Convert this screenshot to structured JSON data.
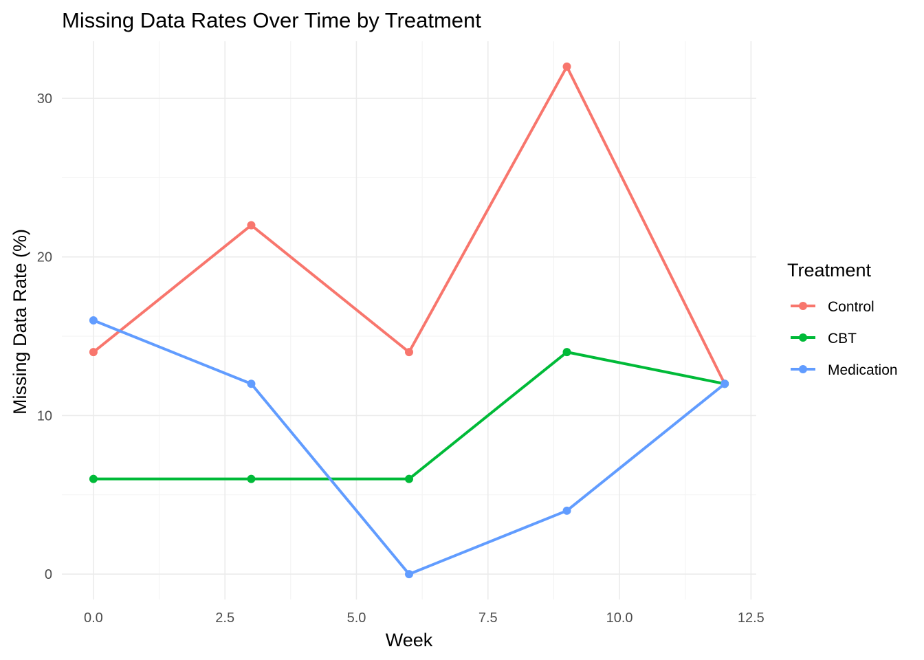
{
  "chart_data": {
    "type": "line",
    "title": "Missing Data Rates Over Time by Treatment",
    "xlabel": "Week",
    "ylabel": "Missing Data Rate (%)",
    "x": [
      0,
      3,
      6,
      9,
      12
    ],
    "xlim": [
      -0.6,
      12.6
    ],
    "ylim": [
      -1.6,
      33.6
    ],
    "x_ticks": [
      0,
      2.5,
      5,
      7.5,
      10,
      12.5
    ],
    "x_tick_labels": [
      "0.0",
      "2.5",
      "5.0",
      "7.5",
      "10.0",
      "12.5"
    ],
    "y_ticks": [
      0,
      10,
      20,
      30
    ],
    "y_tick_labels": [
      "0",
      "10",
      "20",
      "30"
    ],
    "grid": true,
    "legend": {
      "title": "Treatment",
      "placement": "right"
    },
    "series": [
      {
        "name": "Control",
        "color": "#F8766D",
        "values": [
          14,
          22,
          14,
          32,
          12
        ]
      },
      {
        "name": "CBT",
        "color": "#00BA38",
        "values": [
          6,
          6,
          6,
          14,
          12
        ]
      },
      {
        "name": "Medication",
        "color": "#619CFF",
        "values": [
          16,
          12,
          0,
          4,
          12
        ]
      }
    ]
  }
}
